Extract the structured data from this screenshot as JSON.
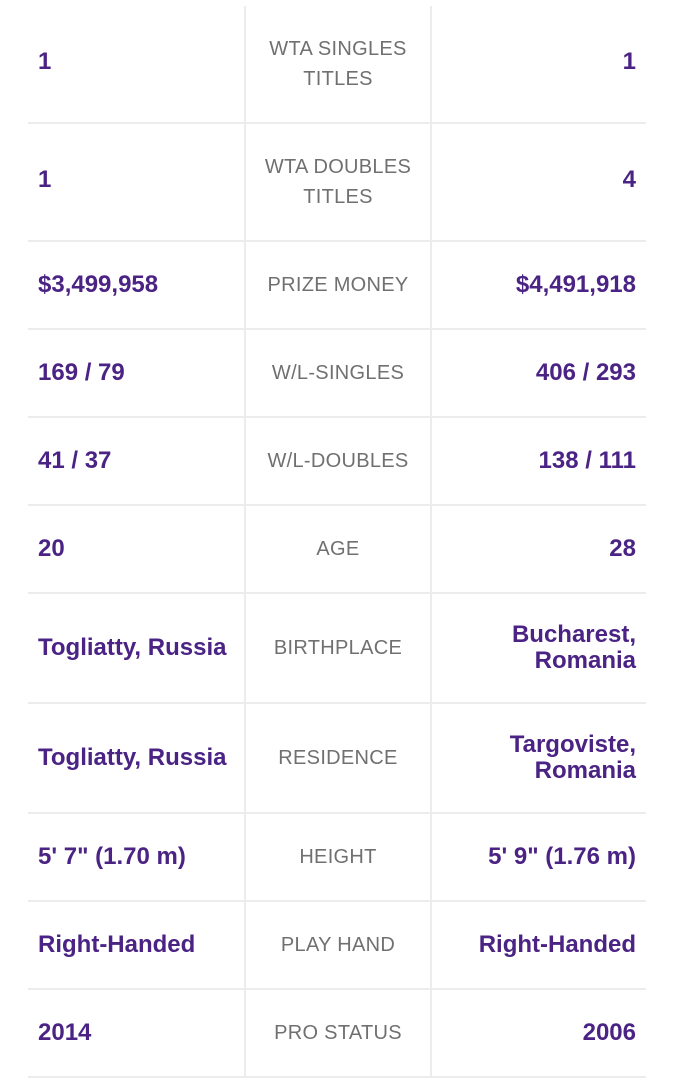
{
  "comparison": {
    "rows": [
      {
        "left": "1",
        "label": "WTA SINGLES TITLES",
        "right": "1"
      },
      {
        "left": "1",
        "label": "WTA DOUBLES TITLES",
        "right": "4"
      },
      {
        "left": "$3,499,958",
        "label": "PRIZE MONEY",
        "right": "$4,491,918"
      },
      {
        "left": "169 / 79",
        "label": "W/L-SINGLES",
        "right": "406 / 293"
      },
      {
        "left": "41 / 37",
        "label": "W/L-DOUBLES",
        "right": "138 / 111"
      },
      {
        "left": "20",
        "label": "AGE",
        "right": "28"
      },
      {
        "left": "Togliatty, Russia",
        "label": "BIRTHPLACE",
        "right": "Bucharest, Romania"
      },
      {
        "left": "Togliatty, Russia",
        "label": "RESIDENCE",
        "right": "Targoviste, Romania"
      },
      {
        "left": "5' 7\" (1.70 m)",
        "label": "HEIGHT",
        "right": "5' 9\" (1.76 m)"
      },
      {
        "left": "Right-Handed",
        "label": "PLAY HAND",
        "right": "Right-Handed"
      },
      {
        "left": "2014",
        "label": "PRO STATUS",
        "right": "2006"
      }
    ]
  },
  "colors": {
    "value": "#4b2384",
    "label": "#707070",
    "divider": "#ececec"
  }
}
